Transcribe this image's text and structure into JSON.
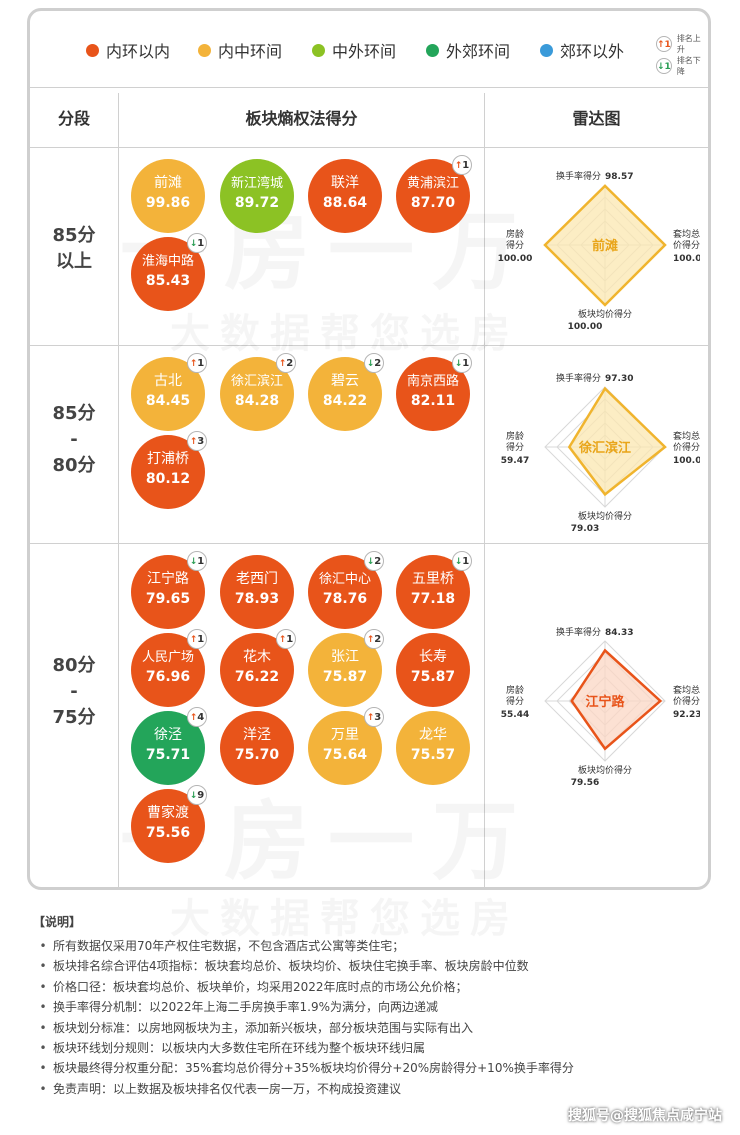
{
  "legend": [
    {
      "label": "内环以内",
      "color": "#e8541a"
    },
    {
      "label": "内中环间",
      "color": "#f3b33a"
    },
    {
      "label": "中外环间",
      "color": "#8cc224"
    },
    {
      "label": "外郊环间",
      "color": "#23a55a"
    },
    {
      "label": "郊环以外",
      "color": "#3a9ad9"
    }
  ],
  "rank_key": {
    "up": "排名上升",
    "down": "排名下降",
    "up_icon": "↑1",
    "down_icon": "↓1"
  },
  "headers": {
    "segment": "分段",
    "score": "板块熵权法得分",
    "radar": "雷达图"
  },
  "watermark": {
    "line1": "一房一万",
    "line2": "大数据帮您选房"
  },
  "tiers": [
    {
      "label": [
        "85分",
        "以上"
      ],
      "items": [
        {
          "name": "前滩",
          "score": "99.86",
          "ring": "内中环间",
          "change": ""
        },
        {
          "name": "新江湾城",
          "score": "89.72",
          "ring": "中外环间",
          "change": ""
        },
        {
          "name": "联洋",
          "score": "88.64",
          "ring": "内环以内",
          "change": ""
        },
        {
          "name": "黄浦滨江",
          "score": "87.70",
          "ring": "内环以内",
          "change": "↑1"
        },
        {
          "name": "淮海中路",
          "score": "85.43",
          "ring": "内环以内",
          "change": "↓1"
        }
      ]
    },
    {
      "label": [
        "85分",
        "-",
        "80分"
      ],
      "items": [
        {
          "name": "古北",
          "score": "84.45",
          "ring": "内中环间",
          "change": "↑1"
        },
        {
          "name": "徐汇滨江",
          "score": "84.28",
          "ring": "内中环间",
          "change": "↑2"
        },
        {
          "name": "碧云",
          "score": "84.22",
          "ring": "内中环间",
          "change": "↓2"
        },
        {
          "name": "南京西路",
          "score": "82.11",
          "ring": "内环以内",
          "change": "↓1"
        },
        {
          "name": "打浦桥",
          "score": "80.12",
          "ring": "内环以内",
          "change": "↑3"
        }
      ]
    },
    {
      "label": [
        "80分",
        "-",
        "75分"
      ],
      "items": [
        {
          "name": "江宁路",
          "score": "79.65",
          "ring": "内环以内",
          "change": "↓1"
        },
        {
          "name": "老西门",
          "score": "78.93",
          "ring": "内环以内",
          "change": ""
        },
        {
          "name": "徐汇中心",
          "score": "78.76",
          "ring": "内环以内",
          "change": "↓2"
        },
        {
          "name": "五里桥",
          "score": "77.18",
          "ring": "内环以内",
          "change": "↓1"
        },
        {
          "name": "人民广场",
          "score": "76.96",
          "ring": "内环以内",
          "change": "↑1"
        },
        {
          "name": "花木",
          "score": "76.22",
          "ring": "内环以内",
          "change": "↑1"
        },
        {
          "name": "张江",
          "score": "75.87",
          "ring": "内中环间",
          "change": "↑2"
        },
        {
          "name": "长寿",
          "score": "75.87",
          "ring": "内环以内",
          "change": ""
        },
        {
          "name": "徐泾",
          "score": "75.71",
          "ring": "外郊环间",
          "change": "↑4"
        },
        {
          "name": "洋泾",
          "score": "75.70",
          "ring": "内环以内",
          "change": ""
        },
        {
          "name": "万里",
          "score": "75.64",
          "ring": "内中环间",
          "change": "↑3"
        },
        {
          "name": "龙华",
          "score": "75.57",
          "ring": "内中环间",
          "change": ""
        },
        {
          "name": "曹家渡",
          "score": "75.56",
          "ring": "内环以内",
          "change": "↓9"
        }
      ]
    }
  ],
  "chart_data": {
    "type": "radar",
    "axes": [
      "换手率得分",
      "套均总价得分",
      "板块均价得分",
      "房龄得分"
    ],
    "axis_display": [
      [
        "换手率得分"
      ],
      [
        "套均总",
        "价得分"
      ],
      [
        "板块均价得分"
      ],
      [
        "房龄",
        "得分"
      ]
    ],
    "max": 100,
    "radars": [
      {
        "name": "前滩",
        "ring": "内中环间",
        "values": [
          98.57,
          100.0,
          100.0,
          100.0
        ],
        "labels": [
          "98.57",
          "100.00",
          "100.00",
          "100.00"
        ],
        "fill": "#fbe7b0",
        "stroke": "#f0b42e",
        "text_color": "#e9a51a"
      },
      {
        "name": "徐汇滨江",
        "ring": "内中环间",
        "values": [
          97.3,
          100.0,
          79.03,
          59.47
        ],
        "labels": [
          "97.30",
          "100.00",
          "79.03",
          "59.47"
        ],
        "fill": "#fbe7b0",
        "stroke": "#f0b42e",
        "text_color": "#e9a51a"
      },
      {
        "name": "江宁路",
        "ring": "内环以内",
        "values": [
          84.33,
          92.23,
          79.56,
          55.44
        ],
        "labels": [
          "84.33",
          "92.23",
          "79.56",
          "55.44"
        ],
        "fill": "#fbd7c4",
        "stroke": "#e8541a",
        "text_color": "#e8541a"
      }
    ]
  },
  "notes": {
    "title": "【说明】",
    "items": [
      "所有数据仅采用70年产权住宅数据，不包含酒店式公寓等类住宅；",
      "板块排名综合评估4项指标：板块套均总价、板块均价、板块住宅换手率、板块房龄中位数",
      "价格口径：板块套均总价、板块单价，均采用2022年底时点的市场公允价格；",
      "换手率得分机制：以2022年上海二手房换手率1.9%为满分，向两边递减",
      "板块划分标准：以房地网板块为主，添加新兴板块，部分板块范围与实际有出入",
      "板块环线划分规则：以板块内大多数住宅所在环线为整个板块环线归属",
      "板块最终得分权重分配：35%套均总价得分+35%板块均价得分+20%房龄得分+10%换手率得分",
      "免责声明：以上数据及板块排名仅代表一房一万，不构成投资建议"
    ]
  },
  "footer": "搜狐号@搜狐焦点咸宁站"
}
